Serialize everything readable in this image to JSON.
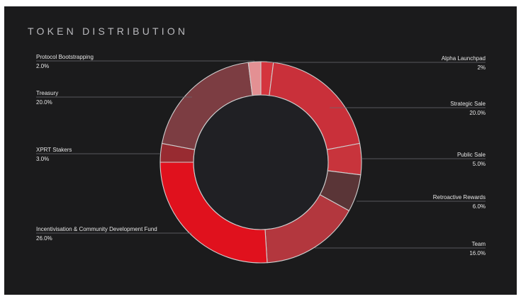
{
  "chart_data": {
    "type": "pie",
    "donut": true,
    "title": "TOKEN DISTRIBUTION",
    "slices": [
      {
        "label": "Alpha Launchpad",
        "value": 2,
        "display": "2%",
        "color": "#d4353e",
        "side": "right"
      },
      {
        "label": "Strategic Sale",
        "value": 20,
        "display": "20.0%",
        "color": "#c9303a",
        "side": "right"
      },
      {
        "label": "Public Sale",
        "value": 5,
        "display": "5.0%",
        "color": "#c8343c",
        "side": "right"
      },
      {
        "label": "Retroactive Rewards",
        "value": 6,
        "display": "6.0%",
        "color": "#5a3537",
        "side": "right"
      },
      {
        "label": "Team",
        "value": 16,
        "display": "16.0%",
        "color": "#b3373e",
        "side": "right"
      },
      {
        "label": "Incentivisation & Community Development Fund",
        "value": 26,
        "display": "26.0%",
        "color": "#e0111d",
        "side": "left"
      },
      {
        "label": "XPRT Stakers",
        "value": 3,
        "display": "3.0%",
        "color": "#982b31",
        "side": "left"
      },
      {
        "label": "Treasury",
        "value": 20,
        "display": "20.0%",
        "color": "#7c3d42",
        "side": "left"
      },
      {
        "label": "Protocol Bootstrapping",
        "value": 2,
        "display": "2.0%",
        "color": "#e39093",
        "side": "left"
      }
    ],
    "colors": {
      "background": "#1b1b1c",
      "center": "#202024"
    }
  }
}
